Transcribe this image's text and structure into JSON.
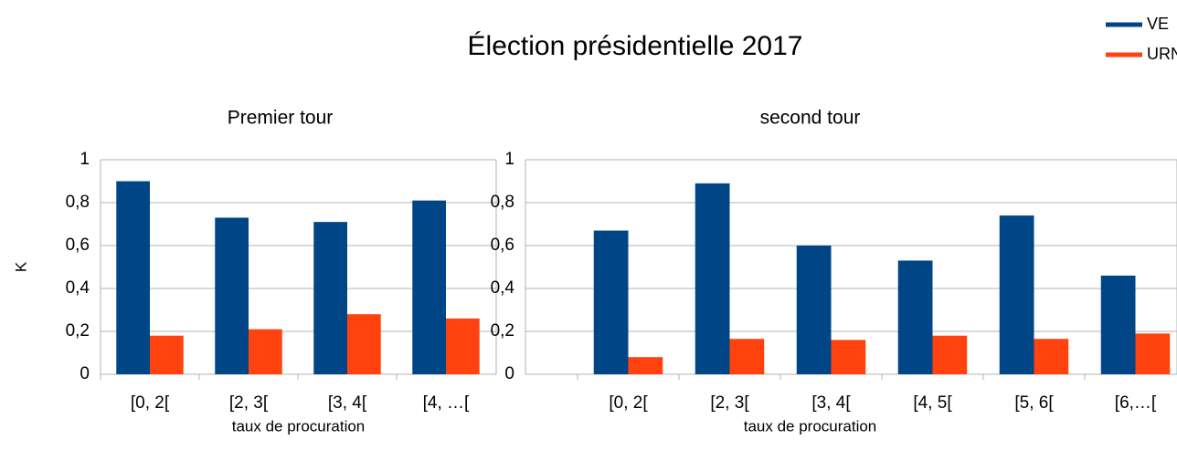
{
  "title": "Élection présidentielle 2017",
  "legend": [
    {
      "name": "VE",
      "color": "#004586"
    },
    {
      "name": "URNE",
      "color": "#ff420e"
    }
  ],
  "chart_data": [
    {
      "type": "bar",
      "title": "Premier tour",
      "xlabel": "taux de procuration",
      "ylabel": "K",
      "categories": [
        "[0, 2[",
        "[2, 3[",
        "[3, 4[",
        "[4, …["
      ],
      "series": [
        {
          "values": [
            0.9,
            0.73,
            0.71,
            0.81
          ]
        },
        {
          "values": [
            0.18,
            0.21,
            0.28,
            0.26
          ]
        }
      ],
      "ylim": [
        0,
        1
      ],
      "yticks": [
        0,
        {
          "value": 0.2,
          "label": "0,2"
        },
        {
          "value": 0.4,
          "label": "0,4"
        },
        {
          "value": 0.6,
          "label": "0,6"
        },
        {
          "value": 0.8,
          "label": "0,8"
        },
        1
      ],
      "grid": true
    },
    {
      "type": "bar",
      "title": "second tour",
      "xlabel": "taux de procuration",
      "categories": [
        "[0, 2[",
        "[2, 3[",
        "[3, 4[",
        "[4, 5[",
        "[5, 6[",
        "[6,…["
      ],
      "series": [
        {
          "values": [
            0.67,
            0.89,
            0.6,
            0.53,
            0.74,
            0.46
          ]
        },
        {
          "values": [
            0.08,
            0.165,
            0.16,
            0.18,
            0.165,
            0.19
          ]
        }
      ],
      "ylim": [
        0,
        1
      ],
      "yticks": [
        0,
        {
          "value": 0.2,
          "label": "0,2"
        },
        {
          "value": 0.4,
          "label": "0,4"
        },
        {
          "value": 0.6,
          "label": "0,6"
        },
        {
          "value": 0.8,
          "label": "0,8"
        },
        1
      ],
      "grid": true
    }
  ]
}
